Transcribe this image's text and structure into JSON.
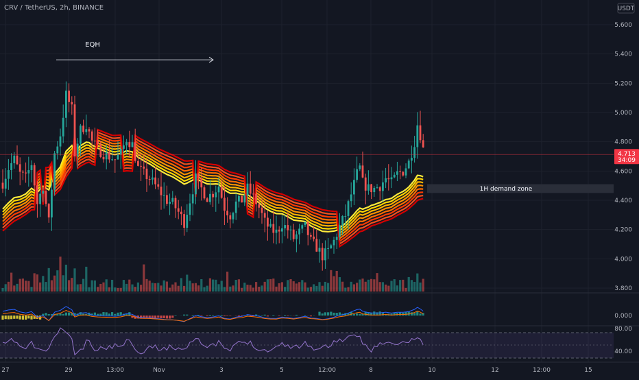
{
  "chart_data": {
    "type": "candlestick",
    "title": "CRV / TetherUS, 2h, BINANCE",
    "currency": "USDT",
    "colors": {
      "up": "#26a69a",
      "down": "#ef5350",
      "background": "#131722",
      "grid": "#1e222d",
      "ribbon_fast": "#ffeb3b",
      "ribbon_slow": "#d50000",
      "price_label": "#f23645",
      "demand_zone": "#2a2e39",
      "eqh_line": "#d1d4dc"
    },
    "y_axis": {
      "ticks": [
        "5.600",
        "5.400",
        "5.200",
        "5.000",
        "4.800",
        "4.600",
        "4.400",
        "4.200",
        "4.000",
        "3.800"
      ],
      "range": [
        3.8,
        5.6
      ]
    },
    "x_axis": {
      "ticks": [
        "27",
        "29",
        "13:00",
        "Nov",
        "3",
        "5",
        "12:00",
        "8",
        "10",
        "12",
        "12:00",
        "15"
      ]
    },
    "last_price": "4.713",
    "countdown": "34:09",
    "annotations": {
      "eqh_label": "EQH",
      "demand_zone_label": "1H demand zone",
      "eqh_price": 5.36,
      "demand_zone_range": [
        4.45,
        4.51
      ]
    },
    "close_path": [
      [
        0,
        4.52
      ],
      [
        2,
        4.62
      ],
      [
        4,
        4.68
      ],
      [
        6,
        4.58
      ],
      [
        8,
        4.55
      ],
      [
        10,
        4.65
      ],
      [
        12,
        4.38
      ],
      [
        14,
        4.5
      ],
      [
        16,
        4.25
      ],
      [
        18,
        4.72
      ],
      [
        20,
        4.85
      ],
      [
        22,
        5.12
      ],
      [
        24,
        5.02
      ],
      [
        25,
        4.72
      ],
      [
        27,
        4.88
      ],
      [
        29,
        4.92
      ],
      [
        31,
        4.8
      ],
      [
        33,
        4.75
      ],
      [
        35,
        4.72
      ],
      [
        37,
        4.7
      ],
      [
        39,
        4.68
      ],
      [
        41,
        4.72
      ],
      [
        43,
        4.82
      ],
      [
        45,
        4.78
      ],
      [
        47,
        4.62
      ],
      [
        49,
        4.58
      ],
      [
        51,
        4.55
      ],
      [
        53,
        4.5
      ],
      [
        55,
        4.45
      ],
      [
        57,
        4.4
      ],
      [
        59,
        4.38
      ],
      [
        61,
        4.32
      ],
      [
        63,
        4.25
      ],
      [
        65,
        4.4
      ],
      [
        67,
        4.55
      ],
      [
        69,
        4.48
      ],
      [
        71,
        4.42
      ],
      [
        73,
        4.45
      ],
      [
        75,
        4.5
      ],
      [
        77,
        4.35
      ],
      [
        79,
        4.3
      ],
      [
        81,
        4.38
      ],
      [
        83,
        4.4
      ],
      [
        85,
        4.48
      ],
      [
        87,
        4.42
      ],
      [
        89,
        4.35
      ],
      [
        91,
        4.25
      ],
      [
        93,
        4.2
      ],
      [
        95,
        4.18
      ],
      [
        97,
        4.24
      ],
      [
        99,
        4.2
      ],
      [
        101,
        4.14
      ],
      [
        103,
        4.18
      ],
      [
        105,
        4.22
      ],
      [
        107,
        4.12
      ],
      [
        109,
        4.08
      ],
      [
        111,
        4.02
      ],
      [
        113,
        4.05
      ],
      [
        115,
        4.12
      ],
      [
        117,
        4.22
      ],
      [
        119,
        4.3
      ],
      [
        121,
        4.44
      ],
      [
        123,
        4.58
      ],
      [
        124,
        4.62
      ],
      [
        125,
        4.52
      ],
      [
        127,
        4.48
      ],
      [
        129,
        4.48
      ],
      [
        131,
        4.5
      ],
      [
        133,
        4.55
      ],
      [
        135,
        4.52
      ],
      [
        137,
        4.58
      ],
      [
        139,
        4.6
      ],
      [
        141,
        4.66
      ],
      [
        143,
        4.8
      ],
      [
        144,
        4.92
      ],
      [
        145,
        4.85
      ],
      [
        146,
        4.75
      ]
    ],
    "ribbon_end": [
      [
        0,
        4.3
      ],
      [
        8,
        4.42
      ],
      [
        16,
        4.52
      ],
      [
        20,
        4.58
      ],
      [
        24,
        4.72
      ],
      [
        30,
        4.78
      ],
      [
        38,
        4.72
      ],
      [
        46,
        4.72
      ],
      [
        54,
        4.64
      ],
      [
        64,
        4.56
      ],
      [
        74,
        4.52
      ],
      [
        84,
        4.44
      ],
      [
        92,
        4.36
      ],
      [
        100,
        4.3
      ],
      [
        108,
        4.24
      ],
      [
        116,
        4.2
      ],
      [
        122,
        4.26
      ],
      [
        128,
        4.34
      ],
      [
        134,
        4.38
      ],
      [
        140,
        4.44
      ],
      [
        146,
        4.52
      ]
    ],
    "rsi_levels": [
      "80.00",
      "40.00"
    ],
    "macd_level": "0.000"
  }
}
